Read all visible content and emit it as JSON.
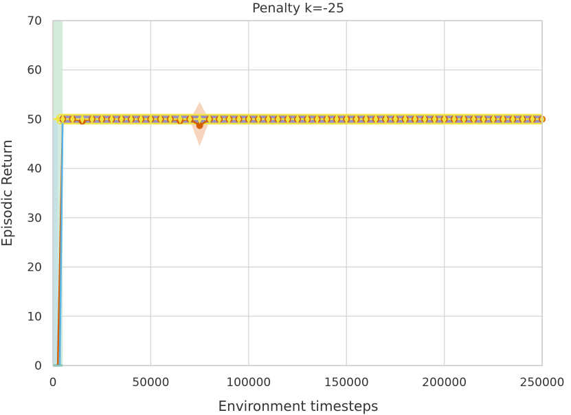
{
  "chart_data": {
    "type": "line",
    "title": "Penalty k=-25",
    "xlabel": "Environment timesteps",
    "ylabel": "Episodic Return",
    "xlim": [
      0,
      250000
    ],
    "ylim": [
      0,
      70
    ],
    "xticks": [
      0,
      50000,
      100000,
      150000,
      200000,
      250000
    ],
    "xtick_labels": [
      "0",
      "50000",
      "100000",
      "150000",
      "200000",
      "250000"
    ],
    "yticks": [
      0,
      10,
      20,
      30,
      40,
      50,
      60,
      70
    ],
    "ytick_labels": [
      "0",
      "10",
      "20",
      "30",
      "40",
      "50",
      "60",
      "70"
    ],
    "grid": true,
    "legend": "none",
    "series": [
      {
        "color": "#d55e00",
        "marker": "circle",
        "x": [
          0,
          2500,
          5000,
          10000,
          15000,
          20000,
          25000,
          30000,
          35000,
          40000,
          45000,
          50000,
          55000,
          60000,
          65000,
          70000,
          75000,
          80000,
          85000,
          90000,
          95000,
          100000,
          105000,
          110000,
          115000,
          120000,
          125000,
          130000,
          135000,
          140000,
          145000,
          150000,
          155000,
          160000,
          165000,
          170000,
          175000,
          180000,
          185000,
          190000,
          195000,
          200000,
          205000,
          210000,
          215000,
          220000,
          225000,
          230000,
          235000,
          240000,
          245000,
          250000
        ],
        "y": [
          0,
          0,
          50,
          50,
          49.6,
          50,
          50,
          50,
          50,
          50,
          50,
          50,
          50,
          50,
          49.7,
          50,
          48.7,
          50,
          50,
          50,
          50,
          50,
          50,
          50,
          50,
          50,
          50,
          50,
          50,
          50,
          50,
          50,
          50,
          50,
          50,
          50,
          50,
          50,
          50,
          50,
          50,
          50,
          50,
          50,
          50,
          50,
          50,
          50,
          50,
          50,
          50,
          50
        ],
        "band_color": "#f4c6a8"
      },
      {
        "color": "#56b4e9",
        "marker": "none",
        "x": [
          0,
          3500,
          5000,
          250000
        ],
        "y": [
          0,
          0,
          50,
          50
        ],
        "band_color": "#b8dcef"
      },
      {
        "color": "#8a7bb8",
        "marker": "none",
        "x": [
          4000,
          250000
        ],
        "y": [
          50,
          50
        ],
        "band_color": "#8a7bb8"
      },
      {
        "color": "#f0e442",
        "marker": "diamond",
        "x": [
          0,
          2500,
          5000,
          10000,
          15000,
          20000,
          25000,
          30000,
          35000,
          40000,
          45000,
          50000,
          55000,
          60000,
          65000,
          70000,
          75000,
          80000,
          85000,
          90000,
          95000,
          100000,
          105000,
          110000,
          115000,
          120000,
          125000,
          130000,
          135000,
          140000,
          145000,
          150000,
          155000,
          160000,
          165000,
          170000,
          175000,
          180000,
          185000,
          190000,
          195000,
          200000,
          205000,
          210000,
          215000,
          220000,
          225000,
          230000,
          235000,
          240000,
          245000,
          250000
        ],
        "y": [
          50,
          50,
          50,
          50,
          50,
          50,
          50,
          50,
          50,
          50,
          50,
          50,
          50,
          50,
          50,
          50,
          50,
          50,
          50,
          50,
          50,
          50,
          50,
          50,
          50,
          50,
          50,
          50,
          50,
          50,
          50,
          50,
          50,
          50,
          50,
          50,
          50,
          50,
          50,
          50,
          50,
          50,
          50,
          50,
          50,
          50,
          50,
          50,
          50,
          50,
          50,
          50
        ],
        "band_color": "#f0e442"
      },
      {
        "color": "#009e73",
        "marker": "none",
        "x": [
          0,
          2500,
          5000
        ],
        "y": [
          0,
          0,
          0
        ],
        "band_color": "#cfe8d6"
      }
    ]
  }
}
